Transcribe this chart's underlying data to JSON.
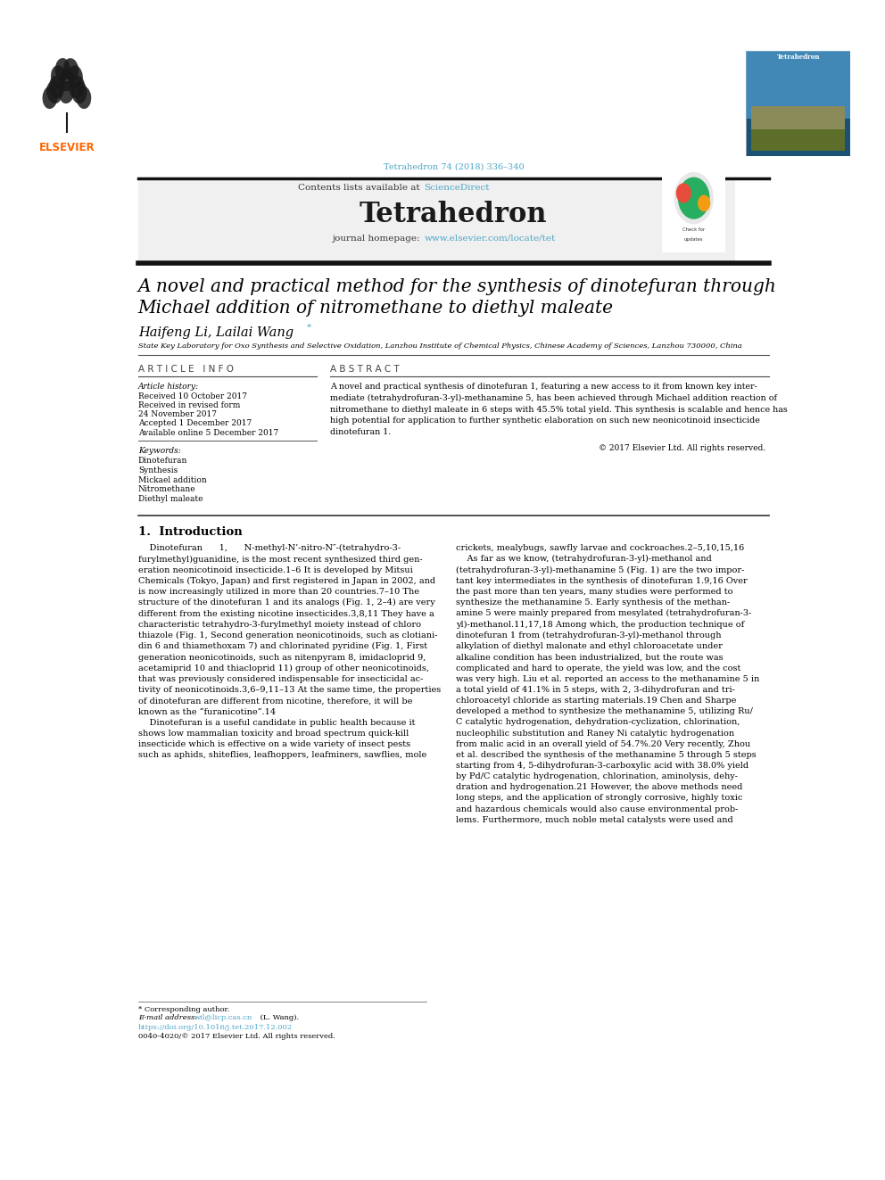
{
  "page_width": 9.92,
  "page_height": 13.23,
  "bg_color": "#ffffff",
  "top_citation": "Tetrahedron 74 (2018) 336–340",
  "top_citation_color": "#4da6c8",
  "journal_name": "Tetrahedron",
  "contents_text": "Contents lists available at",
  "sciencedirect_text": "ScienceDirect",
  "sciencedirect_color": "#4da6c8",
  "journal_homepage_text": "journal homepage:",
  "journal_url": "www.elsevier.com/locate/tet",
  "journal_url_color": "#4da6c8",
  "header_bg": "#f0f0f0",
  "article_title_line1": "A novel and practical method for the synthesis of dinotefuran through",
  "article_title_line2": "Michael addition of nitromethane to diethyl maleate",
  "authors": "Haifeng Li, Lailai Wang",
  "affiliation": "State Key Laboratory for Oxo Synthesis and Selective Oxidation, Lanzhou Institute of Chemical Physics, Chinese Academy of Sciences, Lanzhou 730000, China",
  "article_info_header": "A R T I C L E   I N F O",
  "abstract_header": "A B S T R A C T",
  "article_history_label": "Article history:",
  "received_1": "Received 10 October 2017",
  "received_2": "Received in revised form",
  "received_2b": "24 November 2017",
  "accepted": "Accepted 1 December 2017",
  "available": "Available online 5 December 2017",
  "keywords_label": "Keywords:",
  "keywords": [
    "Dinotefuran",
    "Synthesis",
    "Mickael addition",
    "Nitromethane",
    "Diethyl maleate"
  ],
  "copyright": "© 2017 Elsevier Ltd. All rights reserved.",
  "section1_header": "1.  Introduction",
  "doi_text": "https://doi.org/10.1016/j.tet.2017.12.002",
  "doi_color": "#4da6c8",
  "issn_text": "0040-4020/© 2017 Elsevier Ltd. All rights reserved.",
  "elsevier_orange": "#ff6600",
  "thick_bar_color": "#1a1a1a",
  "text_color": "#000000"
}
